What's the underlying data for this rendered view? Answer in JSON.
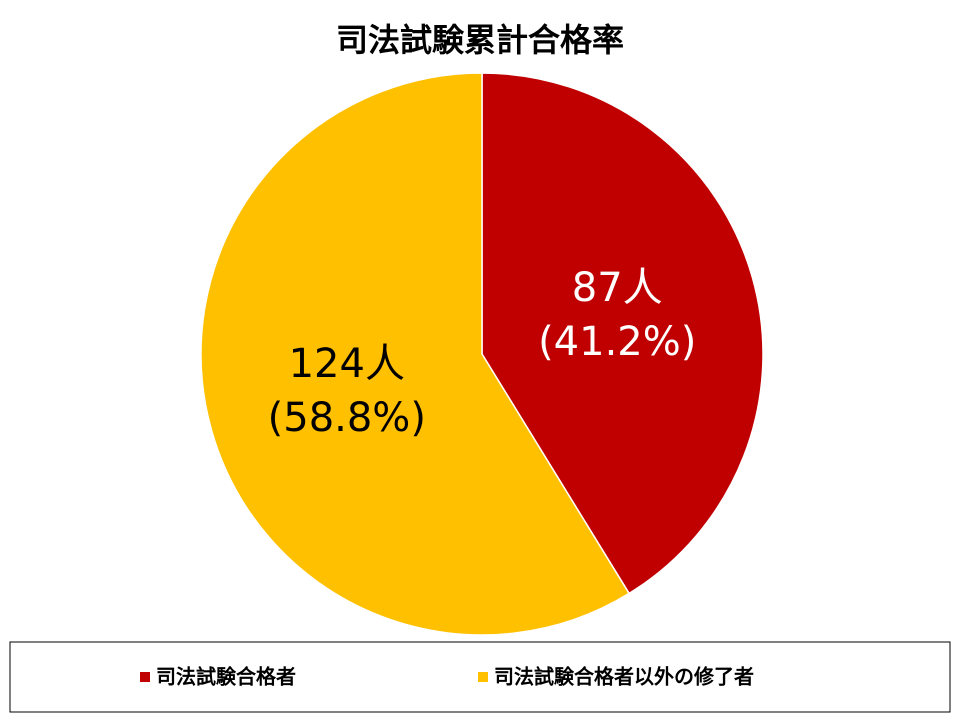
{
  "chart_data": {
    "type": "pie",
    "title": "司法試験累計合格率",
    "categories": [
      "司法試験合格者",
      "司法試験合格者以外の修了者"
    ],
    "values": [
      87,
      124
    ],
    "value_labels": [
      "87人",
      "124人"
    ],
    "percent_labels": [
      "(41.2%)",
      "(58.8%)"
    ],
    "colors": [
      "#c00000",
      "#ffc000"
    ],
    "legend": "bottom"
  }
}
